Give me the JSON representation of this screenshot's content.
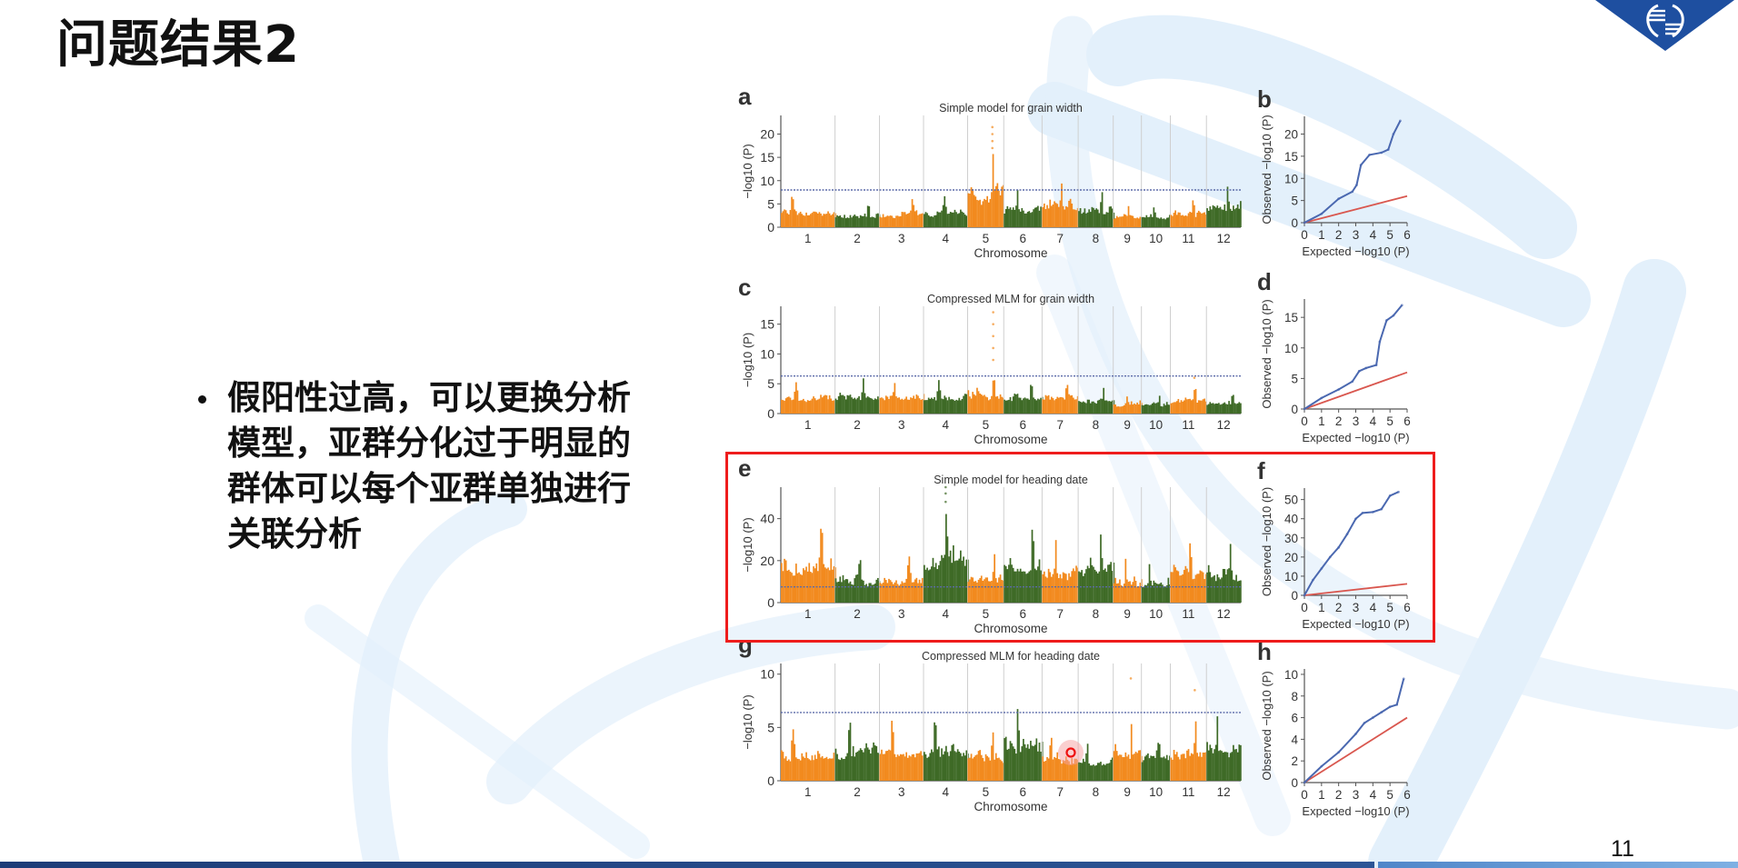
{
  "slide": {
    "title": "问题结果2",
    "bullet": "假阳性过高，可以更换分析模型，亚群分化过于明显的群体可以每个亚群单独进行关联分析",
    "page_number": "11",
    "logo": "dna-diamond-logo",
    "colors": {
      "logo_blue": "#1e4fa0",
      "highlight_red": "#ee1c1c",
      "background_dna": "#e3f0fb"
    }
  },
  "chart_data": [
    {
      "panel": "a",
      "type": "scatter",
      "subtype": "manhattan",
      "title": "Simple model for grain width",
      "xlabel": "Chromosome",
      "ylabel": "−log10 (P)",
      "categories": [
        "1",
        "2",
        "3",
        "4",
        "5",
        "6",
        "7",
        "8",
        "9",
        "10",
        "11",
        "12"
      ],
      "ylim": [
        0,
        24
      ],
      "yticks": [
        0,
        5,
        10,
        15,
        20
      ],
      "threshold": 8,
      "chromosome_max": [
        7,
        5.5,
        6.5,
        7.5,
        16,
        8.5,
        10.5,
        8.5,
        5,
        5.5,
        7,
        9.5
      ],
      "outliers": [
        {
          "chr": 5,
          "values": [
            17,
            18.5,
            20,
            21.5
          ]
        }
      ],
      "colors": [
        "#f28a1e",
        "#3e6a26"
      ]
    },
    {
      "panel": "b",
      "type": "line",
      "subtype": "qq",
      "xlabel": "Expected −log10 (P)",
      "ylabel": "Observed −log10 (P)",
      "xlim": [
        0,
        6
      ],
      "xticks": [
        0,
        1,
        2,
        3,
        4,
        5,
        6
      ],
      "ylim": [
        0,
        24
      ],
      "yticks": [
        0,
        5,
        10,
        15,
        20
      ],
      "observed": [
        [
          0,
          0
        ],
        [
          1,
          2
        ],
        [
          2,
          5.4
        ],
        [
          2.8,
          7
        ],
        [
          3.05,
          8.5
        ],
        [
          3.3,
          13
        ],
        [
          3.8,
          15.3
        ],
        [
          4.5,
          15.8
        ],
        [
          4.9,
          16.5
        ],
        [
          5.2,
          20
        ],
        [
          5.6,
          23
        ]
      ],
      "expected_line": [
        [
          0,
          0
        ],
        [
          6,
          6
        ]
      ],
      "colors": {
        "observed": "#4a68b0",
        "expected": "#d9574f"
      }
    },
    {
      "panel": "c",
      "type": "scatter",
      "subtype": "manhattan",
      "title": "Compressed MLM for grain width",
      "xlabel": "Chromosome",
      "ylabel": "−log10 (P)",
      "categories": [
        "1",
        "2",
        "3",
        "4",
        "5",
        "6",
        "7",
        "8",
        "9",
        "10",
        "11",
        "12"
      ],
      "ylim": [
        0,
        18
      ],
      "yticks": [
        0,
        5,
        10,
        15
      ],
      "threshold": 6.3,
      "chromosome_max": [
        5.5,
        6,
        5.5,
        6,
        7.3,
        6,
        6,
        4.5,
        3.5,
        3.5,
        5,
        4
      ],
      "outliers": [
        {
          "chr": 5,
          "values": [
            9,
            11,
            13,
            15,
            17
          ]
        },
        {
          "chr": 11,
          "values": [
            6
          ]
        }
      ],
      "colors": [
        "#f28a1e",
        "#3e6a26"
      ]
    },
    {
      "panel": "d",
      "type": "line",
      "subtype": "qq",
      "xlabel": "Expected −log10 (P)",
      "ylabel": "Observed −log10 (P)",
      "xlim": [
        0,
        6
      ],
      "xticks": [
        0,
        1,
        2,
        3,
        4,
        5,
        6
      ],
      "ylim": [
        0,
        18
      ],
      "yticks": [
        0,
        5,
        10,
        15
      ],
      "observed": [
        [
          0,
          0
        ],
        [
          1,
          1.8
        ],
        [
          2,
          3.2
        ],
        [
          2.8,
          4.5
        ],
        [
          3.2,
          6.2
        ],
        [
          3.6,
          6.7
        ],
        [
          4.2,
          7.2
        ],
        [
          4.4,
          11
        ],
        [
          4.8,
          14.5
        ],
        [
          5.2,
          15.3
        ],
        [
          5.7,
          17
        ]
      ],
      "expected_line": [
        [
          0,
          0
        ],
        [
          6,
          6
        ]
      ],
      "colors": {
        "observed": "#4a68b0",
        "expected": "#d9574f"
      }
    },
    {
      "panel": "e",
      "type": "scatter",
      "subtype": "manhattan",
      "title": "Simple model for heading date",
      "xlabel": "Chromosome",
      "ylabel": "−log10 (P)",
      "categories": [
        "1",
        "2",
        "3",
        "4",
        "5",
        "6",
        "7",
        "8",
        "9",
        "10",
        "11",
        "12"
      ],
      "ylim": [
        0,
        55
      ],
      "yticks": [
        0,
        20,
        40
      ],
      "threshold": 7.5,
      "chromosome_max": [
        42,
        24,
        26,
        45,
        24,
        38,
        33,
        36,
        23,
        21,
        33,
        31
      ],
      "outliers": [
        {
          "chr": 4,
          "values": [
            48,
            52,
            55
          ]
        }
      ],
      "colors": [
        "#f28a1e",
        "#3e6a26"
      ],
      "highlighted": true
    },
    {
      "panel": "f",
      "type": "line",
      "subtype": "qq",
      "xlabel": "Expected −log10 (P)",
      "ylabel": "Observed −log10 (P)",
      "xlim": [
        0,
        6
      ],
      "xticks": [
        0,
        1,
        2,
        3,
        4,
        5,
        6
      ],
      "ylim": [
        0,
        56
      ],
      "yticks": [
        0,
        10,
        20,
        30,
        40,
        50
      ],
      "observed": [
        [
          0,
          0
        ],
        [
          0.5,
          8
        ],
        [
          1,
          14
        ],
        [
          1.5,
          20
        ],
        [
          2,
          25
        ],
        [
          2.5,
          32
        ],
        [
          3,
          40
        ],
        [
          3.4,
          43
        ],
        [
          4,
          43.5
        ],
        [
          4.5,
          45
        ],
        [
          5,
          52
        ],
        [
          5.5,
          54
        ]
      ],
      "expected_line": [
        [
          0,
          0
        ],
        [
          6,
          6
        ]
      ],
      "colors": {
        "observed": "#4a68b0",
        "expected": "#d9574f"
      },
      "highlighted": true
    },
    {
      "panel": "g",
      "type": "scatter",
      "subtype": "manhattan",
      "title": "Compressed MLM for heading date",
      "xlabel": "Chromosome",
      "ylabel": "−log10 (P)",
      "categories": [
        "1",
        "2",
        "3",
        "4",
        "5",
        "6",
        "7",
        "8",
        "9",
        "10",
        "11",
        "12"
      ],
      "ylim": [
        0,
        11
      ],
      "yticks": [
        0,
        5,
        10
      ],
      "threshold": 6.4,
      "chromosome_max": [
        5.3,
        6.3,
        6.2,
        6.5,
        5,
        7.2,
        4.8,
        4,
        6,
        5,
        6,
        7
      ],
      "outliers": [
        {
          "chr": 9,
          "values": [
            9.6
          ]
        },
        {
          "chr": 11,
          "values": [
            8.5
          ]
        }
      ],
      "colors": [
        "#f28a1e",
        "#3e6a26"
      ]
    },
    {
      "panel": "h",
      "type": "line",
      "subtype": "qq",
      "xlabel": "Expected −log10 (P)",
      "ylabel": "Observed −log10 (P)",
      "xlim": [
        0,
        6
      ],
      "xticks": [
        0,
        1,
        2,
        3,
        4,
        5,
        6
      ],
      "ylim": [
        0,
        10.5
      ],
      "yticks": [
        0,
        2,
        4,
        6,
        8,
        10
      ],
      "observed": [
        [
          0,
          0
        ],
        [
          1,
          1.5
        ],
        [
          2,
          2.8
        ],
        [
          3,
          4.5
        ],
        [
          3.5,
          5.5
        ],
        [
          4,
          6
        ],
        [
          4.5,
          6.5
        ],
        [
          5,
          7
        ],
        [
          5.4,
          7.2
        ],
        [
          5.8,
          9.6
        ]
      ],
      "expected_line": [
        [
          0,
          0
        ],
        [
          6,
          6
        ]
      ],
      "colors": {
        "observed": "#4a68b0",
        "expected": "#d9574f"
      }
    }
  ]
}
